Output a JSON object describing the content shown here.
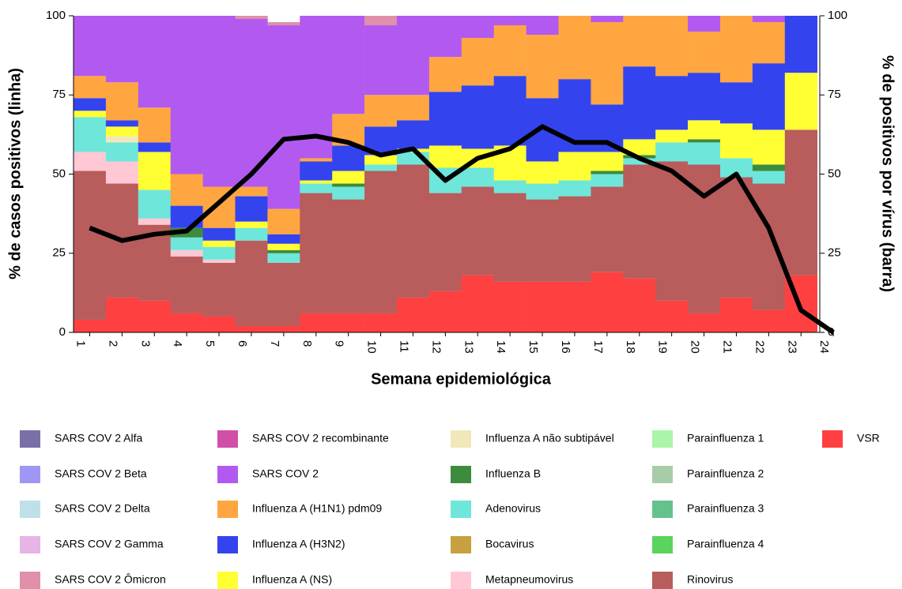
{
  "chart_data": {
    "type": "bar",
    "xlabel": "Semana epidemiológica",
    "ylabel": "% de casos positivos (linha)",
    "y2label": "% de positivos por vírus (barra)",
    "categories": [
      "1",
      "2",
      "3",
      "4",
      "5",
      "6",
      "7",
      "8",
      "9",
      "10",
      "11",
      "12",
      "13",
      "14",
      "15",
      "16",
      "17",
      "18",
      "19",
      "20",
      "21",
      "22",
      "23",
      "24"
    ],
    "ylim": [
      0,
      100
    ],
    "yticks": [
      0,
      25,
      50,
      75,
      100
    ],
    "y2lim": [
      0,
      100
    ],
    "y2ticks": [
      0,
      25,
      50,
      75,
      100
    ],
    "stacked": true,
    "line": {
      "color": "#000000",
      "values": [
        33,
        29,
        31,
        32,
        41,
        50,
        61,
        62,
        60,
        56,
        58,
        48,
        55,
        58,
        65,
        60,
        60,
        55,
        51,
        43,
        50,
        33,
        7,
        0
      ]
    },
    "series": [
      {
        "name": "SARS COV 2 Alfa",
        "color": "#7b6fa8",
        "axis": "y2",
        "values": [
          0,
          0,
          0,
          0,
          0,
          0,
          0,
          0,
          0,
          0,
          0,
          0,
          0,
          0,
          0,
          0,
          0,
          0,
          0,
          0,
          0,
          0,
          0,
          0
        ]
      },
      {
        "name": "SARS COV 2 Beta",
        "color": "#9f97f5",
        "axis": "y2",
        "values": [
          0,
          0,
          0,
          0,
          0,
          0,
          0,
          0,
          0,
          0,
          0,
          0,
          0,
          0,
          0,
          0,
          0,
          0,
          0,
          0,
          0,
          0,
          0,
          0
        ]
      },
      {
        "name": "SARS COV 2 Delta",
        "color": "#bfe0e8",
        "axis": "y2",
        "values": [
          0,
          0,
          0,
          0,
          0,
          0,
          0,
          0,
          0,
          0,
          0,
          0,
          0,
          0,
          0,
          0,
          0,
          0,
          0,
          0,
          0,
          0,
          0,
          0
        ]
      },
      {
        "name": "SARS COV 2 Gamma",
        "color": "#e6b5e6",
        "axis": "y2",
        "values": [
          0,
          0,
          0,
          0,
          0,
          0,
          0,
          0,
          0,
          0,
          0,
          0,
          0,
          0,
          0,
          0,
          0,
          0,
          0,
          0,
          0,
          0,
          0,
          0
        ]
      },
      {
        "name": "SARS COV 2 Ômicron",
        "color": "#e090a8",
        "axis": "y2",
        "values": [
          0,
          0,
          0,
          0,
          0,
          1,
          1,
          0,
          0,
          3,
          0,
          0,
          0,
          0,
          0,
          0,
          0,
          0,
          0,
          0,
          0,
          0,
          0,
          0
        ]
      },
      {
        "name": "SARS COV 2 recombinante",
        "color": "#d14fa6",
        "axis": "y2",
        "values": [
          0,
          0,
          0,
          0,
          0,
          0,
          0,
          0,
          0,
          0,
          0,
          0,
          0,
          0,
          0,
          0,
          0,
          0,
          0,
          0,
          0,
          0,
          0,
          0
        ]
      },
      {
        "name": "SARS COV 2",
        "color": "#b25af0",
        "axis": "y2",
        "values": [
          19,
          21,
          29,
          50,
          54,
          53,
          58,
          45,
          31,
          22,
          25,
          13,
          7,
          3,
          6,
          0,
          2,
          0,
          0,
          5,
          0,
          2,
          0,
          0
        ]
      },
      {
        "name": "Influenza A (H1N1) pdm09",
        "color": "#ffa640",
        "axis": "y2",
        "values": [
          7,
          12,
          11,
          10,
          13,
          3,
          8,
          1,
          10,
          10,
          8,
          11,
          15,
          16,
          20,
          20,
          26,
          16,
          19,
          13,
          21,
          13,
          0,
          0
        ]
      },
      {
        "name": "Influenza A (H3N2)",
        "color": "#3344ee",
        "axis": "y2",
        "values": [
          4,
          2,
          3,
          7,
          4,
          8,
          3,
          6,
          8,
          9,
          9,
          17,
          20,
          22,
          20,
          23,
          15,
          23,
          17,
          15,
          13,
          21,
          18,
          0
        ]
      },
      {
        "name": "Influenza A (NS)",
        "color": "#ffff33",
        "axis": "y2",
        "values": [
          2,
          3,
          12,
          0,
          2,
          2,
          2,
          1,
          4,
          3,
          1,
          7,
          6,
          11,
          7,
          9,
          6,
          5,
          4,
          6,
          11,
          11,
          18,
          0
        ]
      },
      {
        "name": "Influenza A não subtipável",
        "color": "#f0e8b8",
        "axis": "y2",
        "values": [
          0,
          2,
          0,
          0,
          0,
          0,
          0,
          0,
          0,
          0,
          0,
          0,
          0,
          0,
          0,
          0,
          0,
          0,
          0,
          0,
          0,
          0,
          0,
          0
        ]
      },
      {
        "name": "Influenza B",
        "color": "#3d8b3d",
        "axis": "y2",
        "values": [
          0,
          0,
          0,
          3,
          0,
          0,
          1,
          0,
          1,
          0,
          0,
          0,
          0,
          0,
          0,
          0,
          1,
          1,
          0,
          1,
          0,
          2,
          0,
          0
        ]
      },
      {
        "name": "Adenovirus",
        "color": "#6ee6da",
        "axis": "y2",
        "values": [
          11,
          6,
          9,
          4,
          4,
          4,
          3,
          3,
          4,
          2,
          4,
          8,
          6,
          4,
          5,
          5,
          4,
          2,
          6,
          7,
          6,
          4,
          0,
          0
        ]
      },
      {
        "name": "Bocavirus",
        "color": "#c8a040",
        "axis": "y2",
        "values": [
          0,
          0,
          0,
          0,
          0,
          0,
          0,
          0,
          0,
          0,
          0,
          0,
          0,
          0,
          0,
          0,
          0,
          0,
          0,
          0,
          0,
          0,
          0,
          0
        ]
      },
      {
        "name": "Metapneumovirus",
        "color": "#ffc8d4",
        "axis": "y2",
        "values": [
          6,
          7,
          2,
          2,
          1,
          0,
          0,
          0,
          0,
          0,
          0,
          0,
          0,
          0,
          0,
          0,
          0,
          0,
          0,
          0,
          0,
          0,
          0,
          0
        ]
      },
      {
        "name": "Parainfluenza 1",
        "color": "#aaf5aa",
        "axis": "y2",
        "values": [
          0,
          0,
          0,
          0,
          0,
          0,
          0,
          0,
          0,
          0,
          0,
          0,
          0,
          0,
          0,
          0,
          0,
          0,
          0,
          0,
          0,
          0,
          0,
          0
        ]
      },
      {
        "name": "Parainfluenza 2",
        "color": "#a8cca8",
        "axis": "y2",
        "values": [
          0,
          0,
          0,
          0,
          0,
          0,
          0,
          0,
          0,
          0,
          0,
          0,
          0,
          0,
          0,
          0,
          0,
          0,
          0,
          0,
          0,
          0,
          0,
          0
        ]
      },
      {
        "name": "Parainfluenza 3",
        "color": "#66c28c",
        "axis": "y2",
        "values": [
          0,
          0,
          0,
          0,
          0,
          0,
          0,
          0,
          0,
          0,
          0,
          0,
          0,
          0,
          0,
          0,
          0,
          0,
          0,
          0,
          0,
          0,
          0,
          0
        ]
      },
      {
        "name": "Parainfluenza 4",
        "color": "#5ad45a",
        "axis": "y2",
        "values": [
          0,
          0,
          0,
          0,
          0,
          0,
          0,
          0,
          0,
          0,
          0,
          0,
          0,
          0,
          0,
          0,
          0,
          0,
          0,
          0,
          0,
          0,
          0,
          0
        ]
      },
      {
        "name": "Rinovirus",
        "color": "#b85c5c",
        "axis": "y2",
        "values": [
          47,
          36,
          24,
          18,
          17,
          27,
          20,
          38,
          36,
          45,
          42,
          31,
          28,
          28,
          26,
          27,
          27,
          36,
          44,
          47,
          38,
          40,
          46,
          0
        ]
      },
      {
        "name": "VSR",
        "color": "#ff4040",
        "axis": "y2",
        "values": [
          4,
          11,
          10,
          6,
          5,
          2,
          2,
          6,
          6,
          6,
          11,
          13,
          18,
          16,
          16,
          16,
          19,
          17,
          10,
          6,
          11,
          7,
          18,
          0
        ]
      }
    ],
    "legend": "bottom"
  }
}
